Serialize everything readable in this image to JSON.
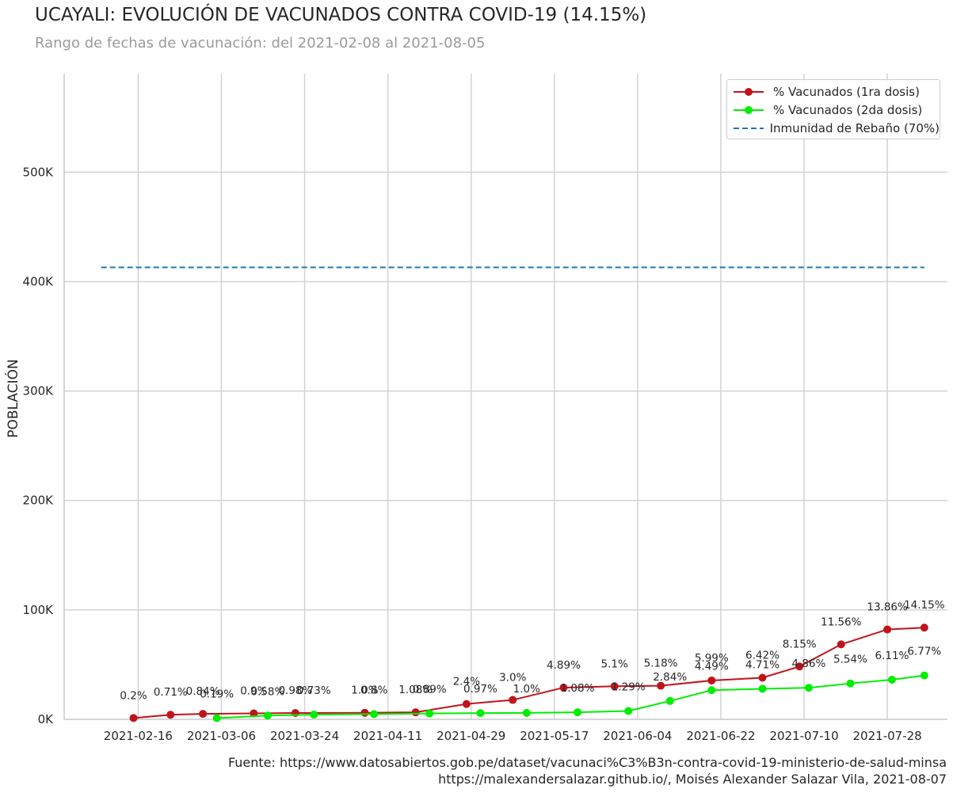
{
  "header": {
    "title": "UCAYALI: EVOLUCIÓN DE VACUNADOS CONTRA COVID-19 (14.15%)",
    "subtitle": "Rango de fechas de vacunación: del 2021-02-08 al 2021-08-05"
  },
  "footer": {
    "line1": "Fuente: https://www.datosabiertos.gob.pe/dataset/vacunaci%C3%B3n-contra-covid-19-ministerio-de-salud-minsa",
    "line2": "https://malexandersalazar.github.io/, Moisés Alexander Salazar Vila, 2021-08-07"
  },
  "chart_data": {
    "type": "line",
    "ylabel": "POBLACIÓN",
    "xlim": [
      "2021-01-31",
      "2021-08-10"
    ],
    "ylim": [
      0,
      590000
    ],
    "x_ticks": [
      "2021-02-16",
      "2021-03-06",
      "2021-03-24",
      "2021-04-11",
      "2021-04-29",
      "2021-05-17",
      "2021-06-04",
      "2021-06-22",
      "2021-07-10",
      "2021-07-28"
    ],
    "y_ticks": [
      {
        "value": 0,
        "label": "0K"
      },
      {
        "value": 100000,
        "label": "100K"
      },
      {
        "value": 200000,
        "label": "200K"
      },
      {
        "value": 300000,
        "label": "300K"
      },
      {
        "value": 400000,
        "label": "400K"
      },
      {
        "value": 500000,
        "label": "500K"
      }
    ],
    "grid": true,
    "legend_position": "top-right",
    "series": [
      {
        "name": "% Vacunados (1ra dosis)",
        "color": "#c0141b",
        "marker": "circle",
        "points": [
          {
            "x": "2021-02-15",
            "y": 1200,
            "label": "0.2%"
          },
          {
            "x": "2021-02-23",
            "y": 4200,
            "label": "0.71%"
          },
          {
            "x": "2021-03-02",
            "y": 5000,
            "label": "0.84%"
          },
          {
            "x": "2021-03-13",
            "y": 5400,
            "label": "0.9%"
          },
          {
            "x": "2021-03-22",
            "y": 5800,
            "label": "0.98%"
          },
          {
            "x": "2021-04-06",
            "y": 6000,
            "label": "1.0%"
          },
          {
            "x": "2021-04-17",
            "y": 6400,
            "label": "1.08%"
          },
          {
            "x": "2021-04-28",
            "y": 14000,
            "label": "2.4%"
          },
          {
            "x": "2021-05-08",
            "y": 17700,
            "label": "3.0%"
          },
          {
            "x": "2021-05-19",
            "y": 29000,
            "label": "4.89%"
          },
          {
            "x": "2021-05-30",
            "y": 30200,
            "label": "5.1%"
          },
          {
            "x": "2021-06-09",
            "y": 30700,
            "label": "5.18%"
          },
          {
            "x": "2021-06-20",
            "y": 35500,
            "label": "5.99%"
          },
          {
            "x": "2021-07-01",
            "y": 38000,
            "label": "6.42%"
          },
          {
            "x": "2021-07-09",
            "y": 48300,
            "label": "8.15%"
          },
          {
            "x": "2021-07-18",
            "y": 68500,
            "label": "11.56%"
          },
          {
            "x": "2021-07-28",
            "y": 82100,
            "label": "13.86%"
          },
          {
            "x": "2021-08-05",
            "y": 83800,
            "label": "14.15%"
          }
        ]
      },
      {
        "name": "% Vacunados (2da dosis)",
        "color": "#00ee00",
        "marker": "circle",
        "points": [
          {
            "x": "2021-03-05",
            "y": 1100,
            "label": "0.19%"
          },
          {
            "x": "2021-03-16",
            "y": 3400,
            "label": "0.58%"
          },
          {
            "x": "2021-03-26",
            "y": 4300,
            "label": "0.73%"
          },
          {
            "x": "2021-04-08",
            "y": 4800,
            "label": "0.8%"
          },
          {
            "x": "2021-04-20",
            "y": 5300,
            "label": "0.89%"
          },
          {
            "x": "2021-05-01",
            "y": 5700,
            "label": "0.97%"
          },
          {
            "x": "2021-05-11",
            "y": 5900,
            "label": "1.0%"
          },
          {
            "x": "2021-05-22",
            "y": 6400,
            "label": "1.08%"
          },
          {
            "x": "2021-06-02",
            "y": 7600,
            "label": "1.29%"
          },
          {
            "x": "2021-06-11",
            "y": 16800,
            "label": "2.84%"
          },
          {
            "x": "2021-06-20",
            "y": 26600,
            "label": "4.49%"
          },
          {
            "x": "2021-07-01",
            "y": 27900,
            "label": "4.71%"
          },
          {
            "x": "2021-07-11",
            "y": 28800,
            "label": "4.86%"
          },
          {
            "x": "2021-07-20",
            "y": 32800,
            "label": "5.54%"
          },
          {
            "x": "2021-07-29",
            "y": 36200,
            "label": "6.11%"
          },
          {
            "x": "2021-08-05",
            "y": 40100,
            "label": "6.77%"
          }
        ]
      }
    ],
    "reference_line": {
      "name": "Inmunidad de Rebaño (70%)",
      "color": "#1f77b4",
      "style": "dashed",
      "y": 413000,
      "x_start": "2021-02-08",
      "x_end": "2021-08-05"
    }
  }
}
